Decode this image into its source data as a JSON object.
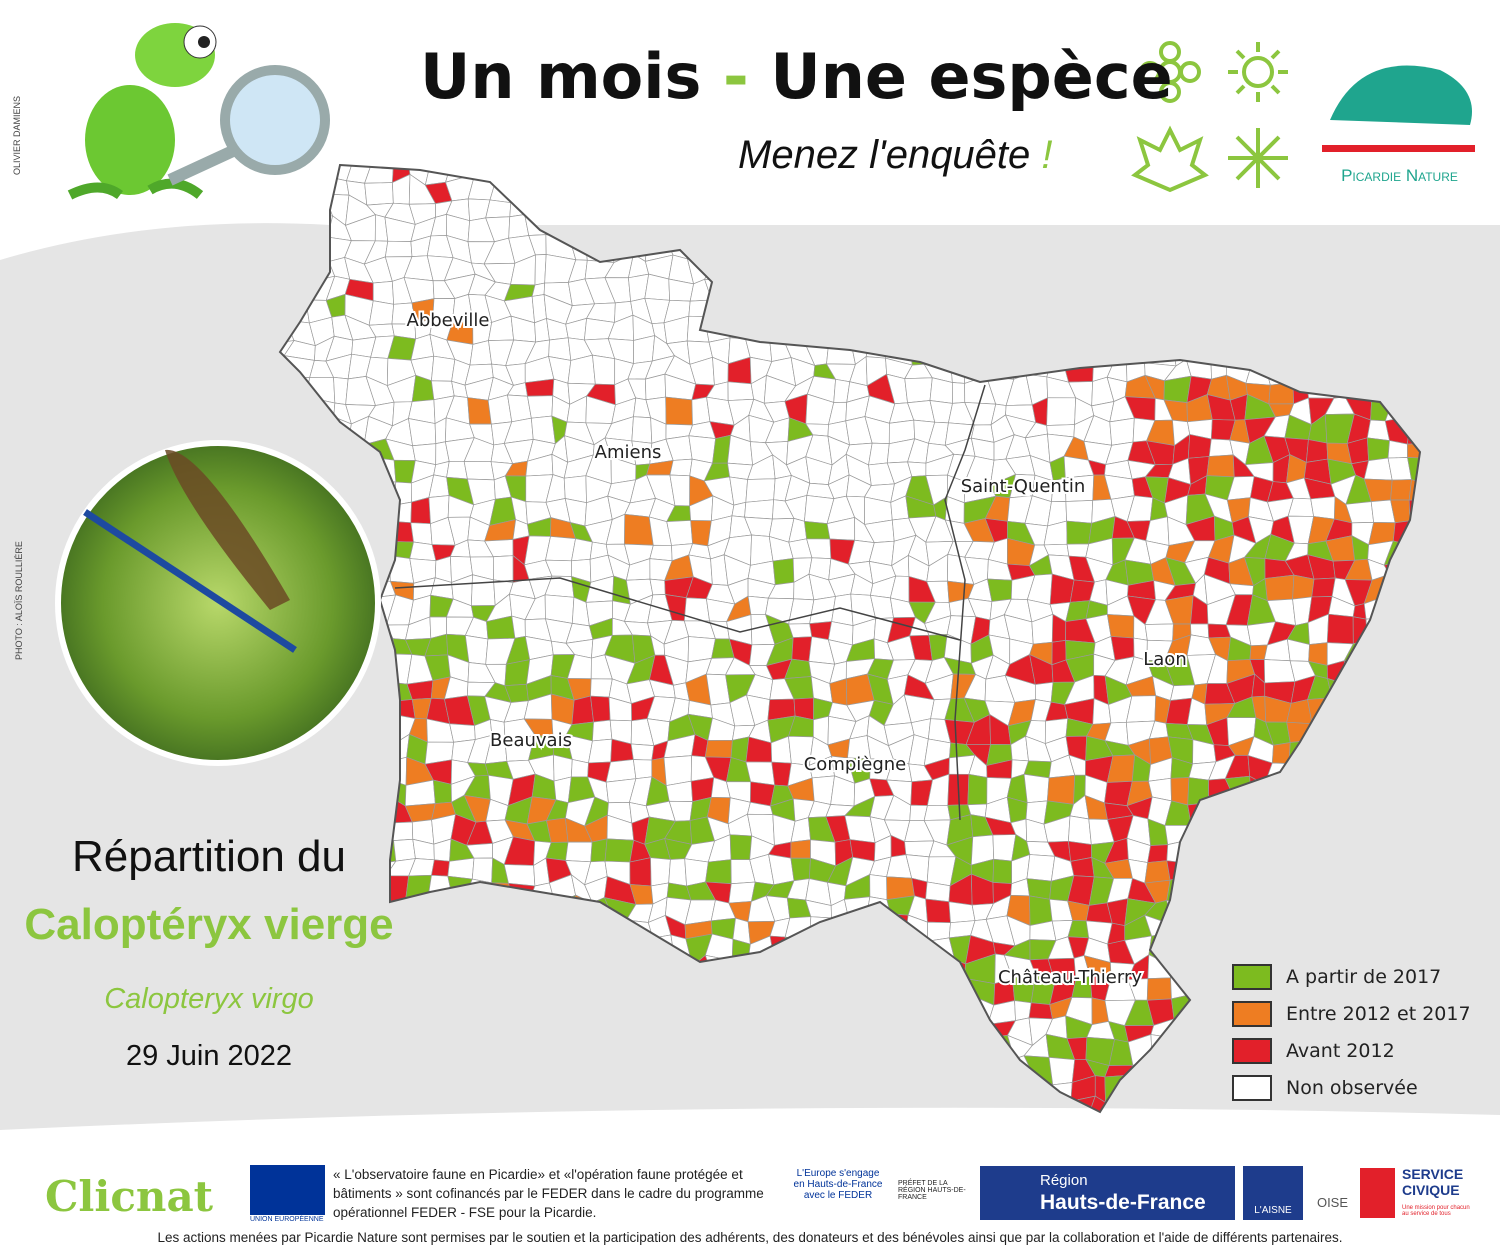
{
  "header": {
    "title_part1": "Un mois",
    "title_dash": "-",
    "title_part2": "Une espèce",
    "subtitle": "Menez l'enquête",
    "subtitle_mark": "!",
    "logo_name": "Picardie Nature",
    "credit_illustration": "OLIVIER DAMIENS",
    "credit_photo": "PHOTO : ALOÏS ROULLIÈRE"
  },
  "species": {
    "heading": "Répartition du",
    "common_name": "Caloptéryx vierge",
    "latin_name": "Calopteryx virgo",
    "date": "29 Juin 2022"
  },
  "map": {
    "cities": [
      "Abbeville",
      "Amiens",
      "Saint-Quentin",
      "Laon",
      "Beauvais",
      "Compiègne",
      "Château-Thierry"
    ],
    "legend": [
      {
        "label": "A partir de 2017",
        "color": "#7dbb1f"
      },
      {
        "label": "Entre 2012 et 2017",
        "color": "#ee7d22"
      },
      {
        "label": "Avant 2012",
        "color": "#e2202a"
      },
      {
        "label": "Non observée",
        "color": "#ffffff"
      }
    ]
  },
  "footer": {
    "clicnat": "Clicnat",
    "eu": "UNION EUROPÉENNE",
    "funding": "« L'observatoire faune en Picardie» et «l'opération faune protégée et bâtiments » sont cofinancés par le FEDER dans le cadre du programme opérationnel FEDER - FSE pour la Picardie.",
    "europe": "L'Europe s'engage en Hauts-de-France avec le FEDER",
    "prefet": "PRÉFET DE LA RÉGION HAUTS-DE-FRANCE",
    "region": "Région",
    "region_name": "Hauts-de-France",
    "aisne": "L'AISNE",
    "oise": "OISE",
    "service": "SERVICE CIVIQUE",
    "service_tagline": "Une mission pour chacun au service de tous",
    "thanks": "Les actions menées par Picardie Nature sont permises par le soutien et la participation des adhérents, des donateurs et des bénévoles ainsi que par la collaboration et l'aide de différents partenaires."
  }
}
